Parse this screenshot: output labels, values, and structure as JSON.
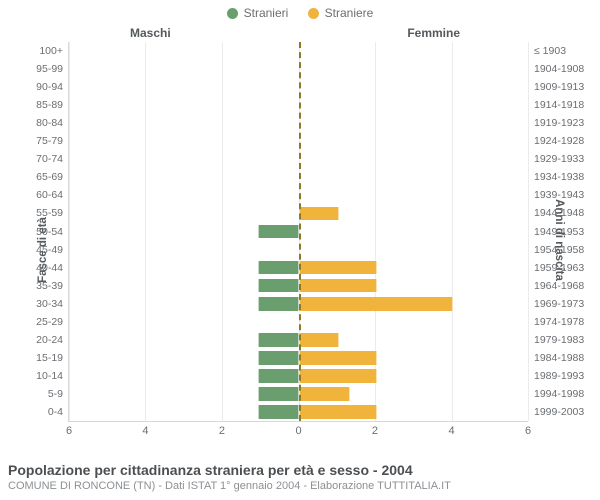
{
  "legend": {
    "male_label": "Stranieri",
    "female_label": "Straniere",
    "male_color": "#6b9e6e",
    "female_color": "#f0b43c"
  },
  "column_titles": {
    "male": "Maschi",
    "female": "Femmine"
  },
  "axis_titles": {
    "left": "Fasce di età",
    "right": "Anni di nascita"
  },
  "title": "Popolazione per cittadinanza straniera per età e sesso - 2004",
  "subtitle": "COMUNE DI RONCONE (TN) - Dati ISTAT 1° gennaio 2004 - Elaborazione TUTTITALIA.IT",
  "chart": {
    "type": "population-pyramid-bar",
    "x_max": 6,
    "x_ticks": [
      6,
      4,
      2,
      0,
      2,
      4,
      6
    ],
    "background_color": "#ffffff",
    "grid_color": "#e9ebec",
    "center_axis_color": "#8a7a2e",
    "bar_colors": {
      "male": "#6b9e6e",
      "female": "#f0b43c"
    },
    "label_fontsize": 10.5,
    "tick_fontsize": 11,
    "rows": [
      {
        "age": "100+",
        "birth": "≤ 1903",
        "male": 0,
        "female": 0
      },
      {
        "age": "95-99",
        "birth": "1904-1908",
        "male": 0,
        "female": 0
      },
      {
        "age": "90-94",
        "birth": "1909-1913",
        "male": 0,
        "female": 0
      },
      {
        "age": "85-89",
        "birth": "1914-1918",
        "male": 0,
        "female": 0
      },
      {
        "age": "80-84",
        "birth": "1919-1923",
        "male": 0,
        "female": 0
      },
      {
        "age": "75-79",
        "birth": "1924-1928",
        "male": 0,
        "female": 0
      },
      {
        "age": "70-74",
        "birth": "1929-1933",
        "male": 0,
        "female": 0
      },
      {
        "age": "65-69",
        "birth": "1934-1938",
        "male": 0,
        "female": 0
      },
      {
        "age": "60-64",
        "birth": "1939-1943",
        "male": 0,
        "female": 0
      },
      {
        "age": "55-59",
        "birth": "1944-1948",
        "male": 0,
        "female": 1
      },
      {
        "age": "50-54",
        "birth": "1949-1953",
        "male": 1,
        "female": 0
      },
      {
        "age": "45-49",
        "birth": "1954-1958",
        "male": 0,
        "female": 0
      },
      {
        "age": "40-44",
        "birth": "1959-1963",
        "male": 1,
        "female": 2
      },
      {
        "age": "35-39",
        "birth": "1964-1968",
        "male": 1,
        "female": 2
      },
      {
        "age": "30-34",
        "birth": "1969-1973",
        "male": 1,
        "female": 4
      },
      {
        "age": "25-29",
        "birth": "1974-1978",
        "male": 0,
        "female": 0
      },
      {
        "age": "20-24",
        "birth": "1979-1983",
        "male": 1,
        "female": 1
      },
      {
        "age": "15-19",
        "birth": "1984-1988",
        "male": 1,
        "female": 2
      },
      {
        "age": "10-14",
        "birth": "1989-1993",
        "male": 1,
        "female": 2
      },
      {
        "age": "5-9",
        "birth": "1994-1998",
        "male": 1,
        "female": 1.3
      },
      {
        "age": "0-4",
        "birth": "1999-2003",
        "male": 1,
        "female": 2
      }
    ]
  }
}
